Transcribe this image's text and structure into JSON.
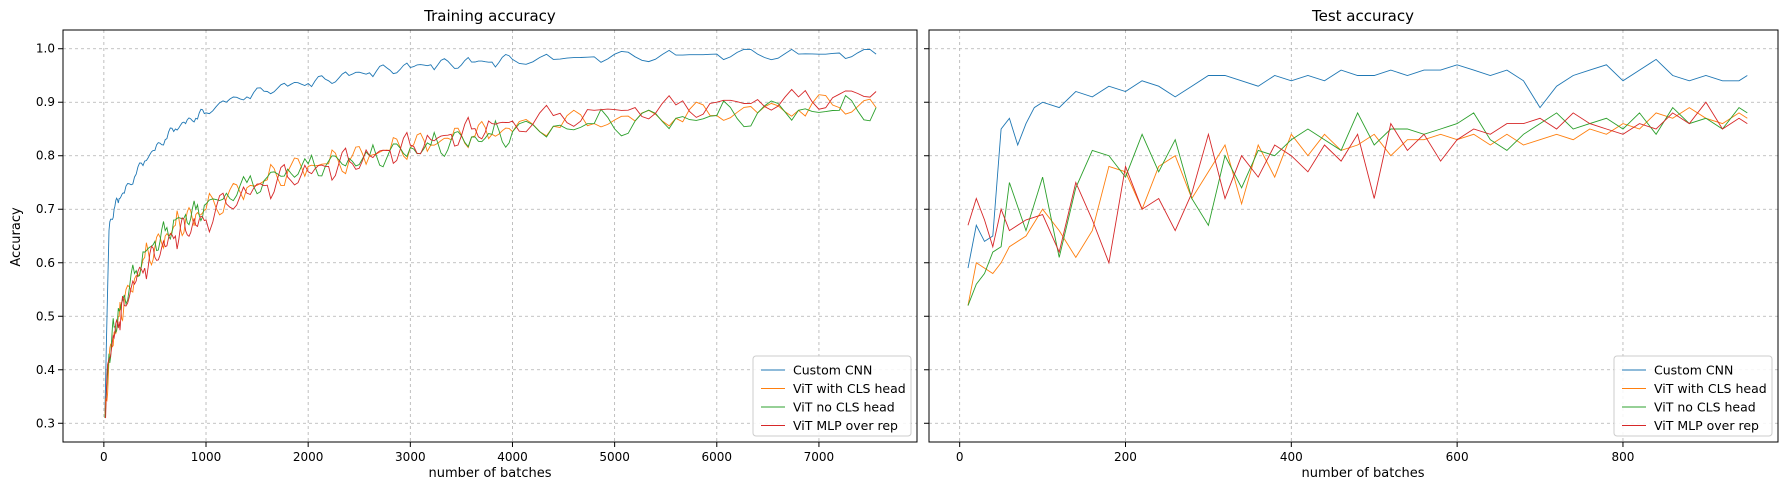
{
  "chart_data": [
    {
      "type": "line",
      "title": "Training accuracy",
      "xlabel": "number of batches",
      "ylabel": "Accuracy",
      "xlim": [
        -400,
        7960
      ],
      "ylim": [
        0.265,
        1.035
      ],
      "xticks": [
        0,
        1000,
        2000,
        3000,
        4000,
        5000,
        6000,
        7000
      ],
      "yticks": [
        0.3,
        0.4,
        0.5,
        0.6,
        0.7,
        0.8,
        0.9,
        1.0
      ],
      "grid": true,
      "legend_position": "lower right",
      "series": [
        {
          "name": "Custom CNN",
          "color": "#1f77b4",
          "x": [
            10,
            50,
            100,
            150,
            200,
            300,
            400,
            500,
            600,
            700,
            800,
            900,
            1000,
            1200,
            1400,
            1600,
            1800,
            2000,
            2200,
            2400,
            2600,
            2800,
            3000,
            3200,
            3400,
            3600,
            3800,
            4000,
            4400,
            4800,
            5200,
            5600,
            6000,
            6400,
            6800,
            7200,
            7560
          ],
          "y": [
            0.32,
            0.66,
            0.7,
            0.72,
            0.73,
            0.76,
            0.79,
            0.81,
            0.83,
            0.85,
            0.86,
            0.87,
            0.88,
            0.9,
            0.91,
            0.92,
            0.93,
            0.935,
            0.94,
            0.95,
            0.955,
            0.96,
            0.965,
            0.97,
            0.97,
            0.975,
            0.975,
            0.98,
            0.98,
            0.985,
            0.985,
            0.988,
            0.99,
            0.99,
            0.99,
            0.992,
            0.99
          ]
        },
        {
          "name": "ViT with CLS head",
          "color": "#ff7f0e",
          "x": [
            10,
            50,
            100,
            150,
            200,
            300,
            400,
            500,
            600,
            700,
            800,
            900,
            1000,
            1200,
            1400,
            1600,
            1800,
            2000,
            2200,
            2400,
            2600,
            2800,
            3000,
            3200,
            3400,
            3600,
            3800,
            4000,
            4400,
            4800,
            5200,
            5600,
            6000,
            6400,
            6800,
            7200,
            7560
          ],
          "y": [
            0.31,
            0.42,
            0.47,
            0.5,
            0.53,
            0.57,
            0.61,
            0.63,
            0.65,
            0.67,
            0.68,
            0.69,
            0.7,
            0.72,
            0.74,
            0.755,
            0.77,
            0.78,
            0.785,
            0.79,
            0.8,
            0.81,
            0.815,
            0.82,
            0.83,
            0.835,
            0.84,
            0.845,
            0.855,
            0.86,
            0.865,
            0.87,
            0.875,
            0.88,
            0.885,
            0.89,
            0.89
          ]
        },
        {
          "name": "ViT no CLS head",
          "color": "#2ca02c",
          "x": [
            10,
            50,
            100,
            150,
            200,
            300,
            400,
            500,
            600,
            700,
            800,
            900,
            1000,
            1200,
            1400,
            1600,
            1800,
            2000,
            2200,
            2400,
            2600,
            2800,
            3000,
            3200,
            3400,
            3600,
            3800,
            4000,
            4400,
            4800,
            5200,
            5600,
            6000,
            6400,
            6800,
            7200,
            7560
          ],
          "y": [
            0.31,
            0.43,
            0.48,
            0.51,
            0.54,
            0.58,
            0.62,
            0.64,
            0.66,
            0.68,
            0.69,
            0.7,
            0.71,
            0.73,
            0.75,
            0.76,
            0.775,
            0.785,
            0.79,
            0.795,
            0.8,
            0.81,
            0.815,
            0.82,
            0.83,
            0.835,
            0.84,
            0.845,
            0.855,
            0.86,
            0.865,
            0.87,
            0.875,
            0.88,
            0.885,
            0.885,
            0.89
          ]
        },
        {
          "name": "ViT MLP over rep",
          "color": "#d62728",
          "x": [
            10,
            50,
            100,
            150,
            200,
            300,
            400,
            500,
            600,
            700,
            800,
            900,
            1000,
            1200,
            1400,
            1600,
            1800,
            2000,
            2200,
            2400,
            2600,
            2800,
            3000,
            3200,
            3400,
            3600,
            3800,
            4000,
            4400,
            4800,
            5200,
            5600,
            6000,
            6400,
            6800,
            7200,
            7560
          ],
          "y": [
            0.31,
            0.42,
            0.46,
            0.49,
            0.52,
            0.56,
            0.59,
            0.61,
            0.63,
            0.65,
            0.66,
            0.67,
            0.68,
            0.71,
            0.73,
            0.745,
            0.76,
            0.77,
            0.78,
            0.79,
            0.8,
            0.81,
            0.82,
            0.83,
            0.84,
            0.85,
            0.86,
            0.865,
            0.875,
            0.885,
            0.89,
            0.895,
            0.9,
            0.905,
            0.91,
            0.915,
            0.92
          ]
        }
      ]
    },
    {
      "type": "line",
      "title": "Test accuracy",
      "xlabel": "number of batches",
      "ylabel": "",
      "xlim": [
        -37,
        987
      ],
      "ylim": [
        0.265,
        1.035
      ],
      "xticks": [
        0,
        200,
        400,
        600,
        800
      ],
      "yticks": [
        0.3,
        0.4,
        0.5,
        0.6,
        0.7,
        0.8,
        0.9,
        1.0
      ],
      "grid": true,
      "legend_position": "lower right",
      "series": [
        {
          "name": "Custom CNN",
          "color": "#1f77b4",
          "x": [
            10,
            20,
            30,
            40,
            50,
            60,
            70,
            80,
            90,
            100,
            120,
            140,
            160,
            180,
            200,
            220,
            240,
            260,
            280,
            300,
            320,
            340,
            360,
            380,
            400,
            420,
            440,
            460,
            480,
            500,
            520,
            540,
            560,
            580,
            600,
            620,
            640,
            660,
            680,
            700,
            720,
            740,
            760,
            780,
            800,
            820,
            840,
            860,
            880,
            900,
            920,
            940,
            950
          ],
          "y": [
            0.59,
            0.67,
            0.64,
            0.65,
            0.85,
            0.87,
            0.82,
            0.86,
            0.89,
            0.9,
            0.89,
            0.92,
            0.91,
            0.93,
            0.92,
            0.94,
            0.93,
            0.91,
            0.93,
            0.95,
            0.95,
            0.94,
            0.93,
            0.95,
            0.94,
            0.95,
            0.94,
            0.96,
            0.95,
            0.95,
            0.96,
            0.95,
            0.96,
            0.96,
            0.97,
            0.96,
            0.95,
            0.96,
            0.94,
            0.89,
            0.93,
            0.95,
            0.96,
            0.97,
            0.94,
            0.96,
            0.98,
            0.95,
            0.94,
            0.95,
            0.94,
            0.94,
            0.95
          ]
        },
        {
          "name": "ViT with CLS head",
          "color": "#ff7f0e",
          "x": [
            10,
            20,
            30,
            40,
            50,
            60,
            80,
            100,
            120,
            140,
            160,
            180,
            200,
            220,
            240,
            260,
            280,
            300,
            320,
            340,
            360,
            380,
            400,
            420,
            440,
            460,
            480,
            500,
            520,
            540,
            560,
            580,
            600,
            620,
            640,
            660,
            680,
            700,
            720,
            740,
            760,
            780,
            800,
            820,
            840,
            860,
            880,
            900,
            920,
            940,
            950
          ],
          "y": [
            0.52,
            0.6,
            0.59,
            0.58,
            0.6,
            0.63,
            0.65,
            0.7,
            0.66,
            0.61,
            0.66,
            0.78,
            0.77,
            0.7,
            0.78,
            0.8,
            0.72,
            0.77,
            0.82,
            0.71,
            0.82,
            0.76,
            0.84,
            0.8,
            0.84,
            0.81,
            0.82,
            0.84,
            0.8,
            0.83,
            0.83,
            0.84,
            0.83,
            0.84,
            0.82,
            0.84,
            0.82,
            0.83,
            0.84,
            0.83,
            0.85,
            0.84,
            0.86,
            0.85,
            0.88,
            0.87,
            0.89,
            0.87,
            0.86,
            0.88,
            0.87
          ]
        },
        {
          "name": "ViT no CLS head",
          "color": "#2ca02c",
          "x": [
            10,
            20,
            30,
            40,
            50,
            60,
            80,
            100,
            120,
            140,
            160,
            180,
            200,
            220,
            240,
            260,
            280,
            300,
            320,
            340,
            360,
            380,
            400,
            420,
            440,
            460,
            480,
            500,
            520,
            540,
            560,
            580,
            600,
            620,
            640,
            660,
            680,
            700,
            720,
            740,
            760,
            780,
            800,
            820,
            840,
            860,
            880,
            900,
            920,
            940,
            950
          ],
          "y": [
            0.52,
            0.56,
            0.58,
            0.62,
            0.63,
            0.75,
            0.66,
            0.76,
            0.61,
            0.74,
            0.81,
            0.8,
            0.76,
            0.84,
            0.77,
            0.83,
            0.72,
            0.67,
            0.8,
            0.74,
            0.81,
            0.8,
            0.83,
            0.85,
            0.83,
            0.81,
            0.88,
            0.82,
            0.85,
            0.85,
            0.84,
            0.85,
            0.86,
            0.88,
            0.83,
            0.81,
            0.84,
            0.86,
            0.88,
            0.85,
            0.86,
            0.87,
            0.85,
            0.88,
            0.84,
            0.89,
            0.86,
            0.87,
            0.85,
            0.89,
            0.88
          ]
        },
        {
          "name": "ViT MLP over rep",
          "color": "#d62728",
          "x": [
            10,
            20,
            30,
            40,
            50,
            60,
            80,
            100,
            120,
            140,
            160,
            180,
            200,
            220,
            240,
            260,
            280,
            300,
            320,
            340,
            360,
            380,
            400,
            420,
            440,
            460,
            480,
            500,
            520,
            540,
            560,
            580,
            600,
            620,
            640,
            660,
            680,
            700,
            720,
            740,
            760,
            780,
            800,
            820,
            840,
            860,
            880,
            900,
            920,
            940,
            950
          ],
          "y": [
            0.67,
            0.72,
            0.68,
            0.63,
            0.7,
            0.66,
            0.68,
            0.69,
            0.62,
            0.75,
            0.68,
            0.6,
            0.78,
            0.7,
            0.72,
            0.66,
            0.73,
            0.84,
            0.72,
            0.8,
            0.76,
            0.82,
            0.8,
            0.77,
            0.82,
            0.79,
            0.84,
            0.72,
            0.86,
            0.81,
            0.84,
            0.79,
            0.83,
            0.85,
            0.84,
            0.86,
            0.86,
            0.87,
            0.85,
            0.88,
            0.86,
            0.85,
            0.84,
            0.86,
            0.85,
            0.88,
            0.86,
            0.9,
            0.85,
            0.87,
            0.86
          ]
        }
      ]
    }
  ]
}
